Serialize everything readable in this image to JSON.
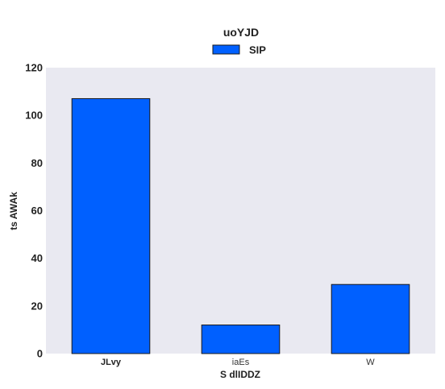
{
  "chart_data": {
    "type": "bar",
    "title": "uoYJD",
    "xlabel": "S dlIDDZ",
    "ylabel": "ts AWAk",
    "categories": [
      "JLvy",
      "iaEs",
      "W"
    ],
    "category_bold": [
      true,
      false,
      false
    ],
    "series": [
      {
        "name": "SIP",
        "values": [
          107,
          12,
          29
        ],
        "color": "#0060ff"
      }
    ],
    "ylim": [
      0,
      120
    ],
    "yticks": [
      "0",
      "20",
      "40",
      "60",
      "80",
      "100",
      "120"
    ],
    "legend": "top-center",
    "grid": false,
    "plot_background": "#e9e9f1",
    "bar_edge_color": "#1a1a1a"
  }
}
